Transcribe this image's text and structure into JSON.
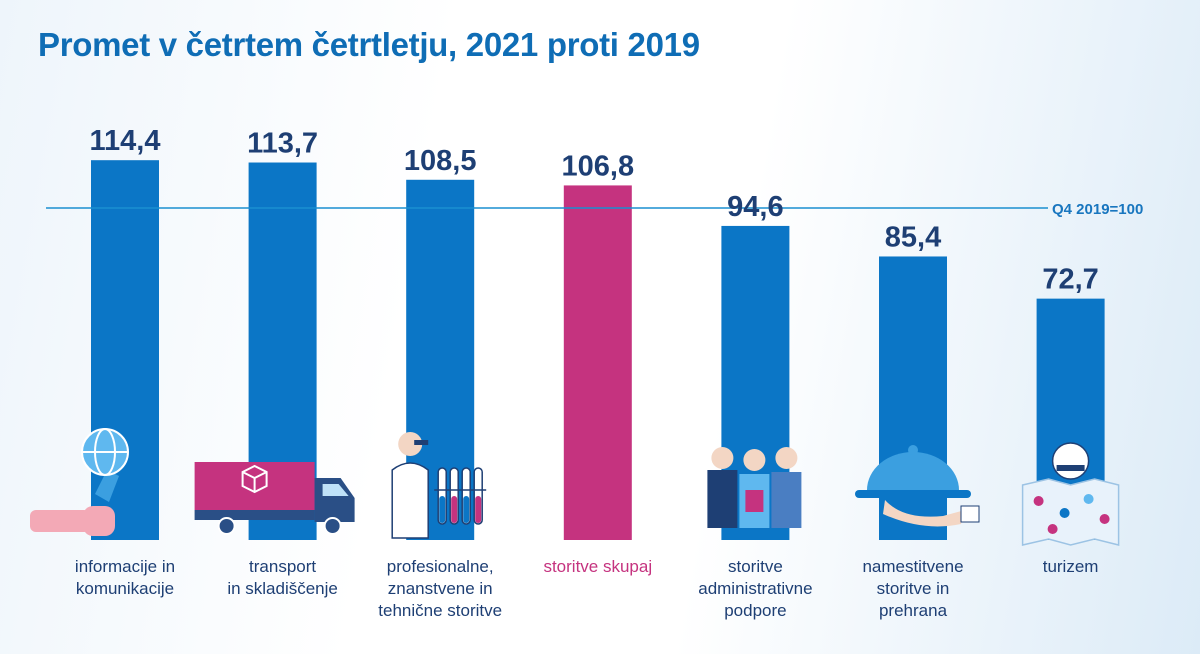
{
  "title": "Promet v četrtem četrtletju, 2021 proti 2019",
  "colors": {
    "bar": "#0b76c6",
    "highlight": "#c5337f",
    "text": "#1e3f74",
    "reference": "#1a8fd0"
  },
  "chart_data": {
    "type": "bar",
    "title": "Promet v četrtem četrtletju, 2021 proti 2019",
    "reference_line": {
      "value": 100,
      "label": "Q4 2019=100"
    },
    "ylim": [
      0,
      125
    ],
    "categories": [
      [
        "informacije in",
        "komunikacije"
      ],
      [
        "transport",
        "in skladiščenje"
      ],
      [
        "profesionalne,",
        "znanstvene in",
        "tehnične storitve"
      ],
      [
        "storitve skupaj"
      ],
      [
        "storitve",
        "administrativne",
        "podpore"
      ],
      [
        "namestitvene",
        "storitve in",
        "prehrana"
      ],
      [
        "turizem"
      ]
    ],
    "values": [
      114.4,
      113.7,
      108.5,
      106.8,
      94.6,
      85.4,
      72.7
    ],
    "value_labels": [
      "114,4",
      "113,7",
      "108,5",
      "106,8",
      "94,6",
      "85,4",
      "72,7"
    ],
    "highlight_index": 3,
    "icons": [
      "globe-hand-icon",
      "truck-icon",
      "scientist-icon",
      "",
      "office-workers-icon",
      "cloche-icon",
      "tourist-map-icon"
    ]
  }
}
